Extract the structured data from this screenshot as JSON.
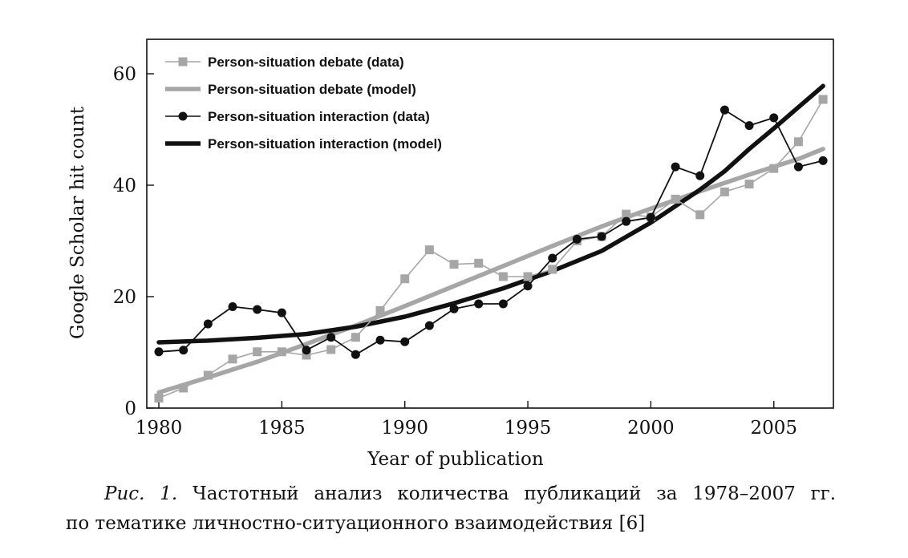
{
  "chart_data": {
    "type": "line",
    "title": "",
    "xlabel": "Year of publication",
    "ylabel": "Google Scholar hit count",
    "xlim": [
      1980,
      2008
    ],
    "ylim": [
      0,
      66
    ],
    "x_ticks": [
      1980,
      1985,
      1990,
      1995,
      2000,
      2005
    ],
    "y_ticks": [
      0,
      20,
      40,
      60
    ],
    "grid": false,
    "legend_position": "top-left",
    "series": [
      {
        "name": "Person-situation debate (data)",
        "color": "#a6a6a6",
        "marker": "square",
        "x": [
          1980,
          1981,
          1982,
          1983,
          1984,
          1985,
          1986,
          1987,
          1988,
          1989,
          1990,
          1991,
          1992,
          1993,
          1994,
          1995,
          1996,
          1997,
          1998,
          1999,
          2000,
          2001,
          2002,
          2003,
          2004,
          2005,
          2006,
          2007
        ],
        "values": [
          1.8,
          3.6,
          5.9,
          8.8,
          10.1,
          10.1,
          9.5,
          10.5,
          12.7,
          17.5,
          23.2,
          28.4,
          25.8,
          26.0,
          23.6,
          23.6,
          24.9,
          30.0,
          30.8,
          34.8,
          34.3,
          37.5,
          34.7,
          38.8,
          40.2,
          43.0,
          47.8,
          55.4
        ]
      },
      {
        "name": "Person-situation debate (model)",
        "color": "#a6a6a6",
        "marker": "none",
        "x": [
          1980,
          1982,
          1984,
          1986,
          1988,
          1990,
          1992,
          1994,
          1996,
          1998,
          2000,
          2002,
          2004,
          2006,
          2007
        ],
        "values": [
          2.8,
          5.5,
          8.3,
          11.5,
          14.8,
          18.3,
          21.9,
          25.5,
          29.1,
          32.6,
          35.8,
          38.9,
          41.9,
          44.7,
          46.5
        ]
      },
      {
        "name": "Person-situation interaction (data)",
        "color": "#111111",
        "marker": "circle",
        "x": [
          1980,
          1981,
          1982,
          1983,
          1984,
          1985,
          1986,
          1987,
          1988,
          1989,
          1990,
          1991,
          1992,
          1993,
          1994,
          1995,
          1996,
          1997,
          1998,
          1999,
          2000,
          2001,
          2002,
          2003,
          2004,
          2005,
          2006,
          2007
        ],
        "values": [
          10.1,
          10.4,
          15.1,
          18.2,
          17.7,
          17.1,
          10.4,
          12.7,
          9.6,
          12.2,
          11.9,
          14.8,
          17.8,
          18.7,
          18.7,
          21.9,
          26.9,
          30.3,
          30.8,
          33.5,
          34.2,
          43.3,
          41.7,
          53.5,
          50.7,
          52.1,
          43.3,
          44.4
        ]
      },
      {
        "name": "Person-situation interaction (model)",
        "color": "#111111",
        "marker": "none",
        "x": [
          1980,
          1982,
          1984,
          1986,
          1988,
          1990,
          1992,
          1994,
          1996,
          1998,
          2000,
          2002,
          2003,
          2004,
          2005,
          2006,
          2007
        ],
        "values": [
          11.8,
          12.1,
          12.6,
          13.3,
          14.6,
          16.4,
          18.8,
          21.5,
          24.6,
          28.2,
          33.3,
          39.2,
          42.5,
          46.5,
          50.2,
          54.0,
          57.8
        ]
      }
    ]
  },
  "caption": {
    "label": "Рис. 1.",
    "line1_text": "Частотный анализ количества публикаций за 1978–2007 гг.",
    "line2_text": "по тематике личностно-ситуационного взаимодействия [6]"
  }
}
